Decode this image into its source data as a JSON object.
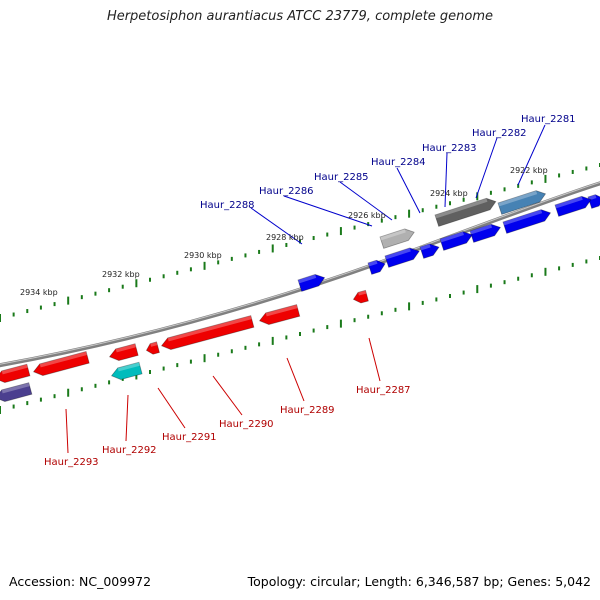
{
  "title": "Herpetosiphon aurantiacus ATCC 23779, complete genome",
  "footer": {
    "accession": "Accession: NC_009972",
    "topology": "Topology: circular; Length: 6,346,587 bp; Genes: 5,042"
  },
  "colors": {
    "forward_gene": "#0000ee",
    "reverse_gene": "#ee0000",
    "forward_label": "#00008b",
    "reverse_label": "#b00000",
    "tick": "#1a7a1a",
    "backbone": "#808080"
  },
  "kbp_labels": [
    "2922 kbp",
    "2924 kbp",
    "2926 kbp",
    "2928 kbp",
    "2930 kbp",
    "2932 kbp",
    "2934 kbp"
  ],
  "gene_labels": {
    "forward": [
      "Haur_2281",
      "Haur_2282",
      "Haur_2283",
      "Haur_2284",
      "Haur_2285",
      "Haur_2286",
      "Haur_2288"
    ],
    "reverse": [
      "Haur_2287",
      "Haur_2289",
      "Haur_2290",
      "Haur_2291",
      "Haur_2292",
      "Haur_2293"
    ]
  }
}
